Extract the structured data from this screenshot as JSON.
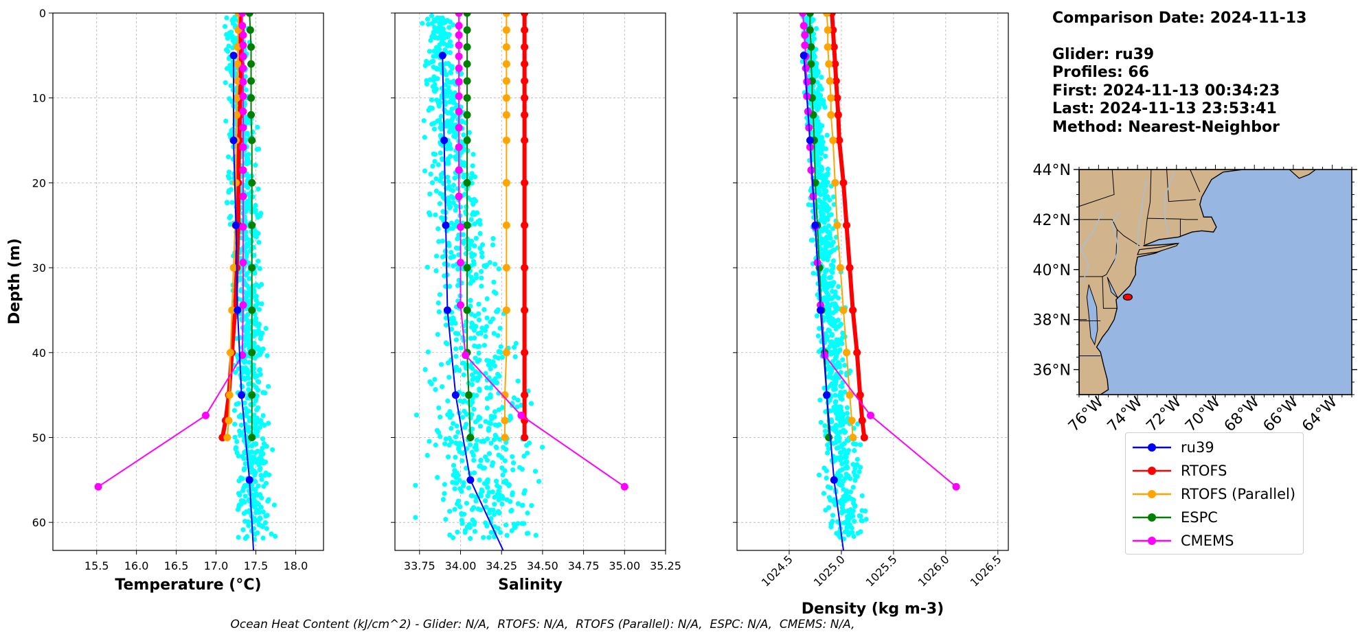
{
  "info": {
    "comparison_date": "Comparison Date: 2024-11-13",
    "glider": "Glider: ru39",
    "profiles": "Profiles: 66",
    "first": "First: 2024-11-13 00:34:23",
    "last": "Last: 2024-11-13 23:53:41",
    "method": "Method: Nearest-Neighbor"
  },
  "footer": "Ocean Heat Content (kJ/cm^2) - Glider: N/A,  RTOFS: N/A,  RTOFS (Parallel): N/A,  ESPC: N/A,  CMEMS: N/A,",
  "legend": [
    {
      "name": "ru39",
      "color": "#0000ff"
    },
    {
      "name": "RTOFS",
      "color": "#ff0000"
    },
    {
      "name": "RTOFS (Parallel)",
      "color": "#ffa500"
    },
    {
      "name": "ESPC",
      "color": "#008000"
    },
    {
      "name": "CMEMS",
      "color": "#ff00ff"
    }
  ],
  "colors": {
    "glider_raw": "#00ffff",
    "land": "#d2b48c",
    "ocean": "#97b6e1",
    "rivers": "#a9bfd6",
    "track": "#ff0000"
  },
  "chart_data": [
    {
      "type": "line",
      "xlabel": "Temperature (°C)",
      "ylabel": "Depth (m)",
      "xlim": [
        14.95,
        18.35
      ],
      "ylim": [
        63.3,
        0
      ],
      "xticks": [
        15.5,
        16.0,
        16.5,
        17.0,
        17.5,
        18.0
      ],
      "yticks": [
        0,
        10,
        20,
        30,
        40,
        50,
        60
      ],
      "grid": true,
      "raw_glider": {
        "name": "ru39",
        "depth_max": 62,
        "center_top": 17.25,
        "center_bottom": 17.5,
        "spread_top": 0.12,
        "spread_bottom": 0.18
      },
      "series": [
        {
          "name": "ru39",
          "color": "#0000ff",
          "points": [
            [
              17.22,
              5
            ],
            [
              17.22,
              15
            ],
            [
              17.25,
              25
            ],
            [
              17.27,
              35
            ],
            [
              17.32,
              45
            ],
            [
              17.42,
              55
            ],
            [
              17.47,
              63.3
            ]
          ]
        },
        {
          "name": "RTOFS",
          "color": "#ff0000",
          "points": [
            [
              17.31,
              0
            ],
            [
              17.31,
              2
            ],
            [
              17.31,
              4
            ],
            [
              17.31,
              6
            ],
            [
              17.31,
              8
            ],
            [
              17.3,
              10
            ],
            [
              17.3,
              12
            ],
            [
              17.29,
              15
            ],
            [
              17.28,
              20
            ],
            [
              17.28,
              25
            ],
            [
              17.26,
              30
            ],
            [
              17.24,
              35
            ],
            [
              17.2,
              40
            ],
            [
              17.16,
              45
            ],
            [
              17.12,
              48
            ],
            [
              17.08,
              50
            ]
          ]
        },
        {
          "name": "RTOFS (Parallel)",
          "color": "#ffa500",
          "points": [
            [
              17.28,
              0
            ],
            [
              17.28,
              2
            ],
            [
              17.27,
              4
            ],
            [
              17.27,
              6
            ],
            [
              17.27,
              8
            ],
            [
              17.26,
              10
            ],
            [
              17.26,
              12
            ],
            [
              17.25,
              15
            ],
            [
              17.25,
              20
            ],
            [
              17.24,
              25
            ],
            [
              17.22,
              30
            ],
            [
              17.2,
              35
            ],
            [
              17.18,
              40
            ],
            [
              17.17,
              45
            ],
            [
              17.16,
              48
            ],
            [
              17.14,
              50
            ]
          ]
        },
        {
          "name": "ESPC",
          "color": "#008000",
          "points": [
            [
              17.42,
              0
            ],
            [
              17.43,
              2
            ],
            [
              17.44,
              4
            ],
            [
              17.44,
              6
            ],
            [
              17.44,
              8
            ],
            [
              17.44,
              10
            ],
            [
              17.44,
              12
            ],
            [
              17.45,
              15
            ],
            [
              17.45,
              20
            ],
            [
              17.45,
              25
            ],
            [
              17.45,
              30
            ],
            [
              17.45,
              35
            ],
            [
              17.45,
              40
            ],
            [
              17.45,
              45
            ],
            [
              17.45,
              50
            ]
          ]
        },
        {
          "name": "CMEMS",
          "color": "#ff00ff",
          "points": [
            [
              17.33,
              0
            ],
            [
              17.33,
              1.5
            ],
            [
              17.34,
              2.6
            ],
            [
              17.34,
              3.8
            ],
            [
              17.34,
              5.1
            ],
            [
              17.34,
              6.5
            ],
            [
              17.34,
              8.1
            ],
            [
              17.34,
              9.8
            ],
            [
              17.34,
              11.6
            ],
            [
              17.34,
              13.5
            ],
            [
              17.34,
              15.8
            ],
            [
              17.34,
              18.5
            ],
            [
              17.34,
              21.6
            ],
            [
              17.34,
              25.2
            ],
            [
              17.34,
              29.4
            ],
            [
              17.34,
              34.4
            ],
            [
              17.33,
              40.3
            ],
            [
              16.87,
              47.4
            ],
            [
              15.52,
              55.8
            ]
          ]
        }
      ]
    },
    {
      "type": "line",
      "xlabel": "Salinity",
      "xlim": [
        33.6,
        35.25
      ],
      "ylim": [
        63.3,
        0
      ],
      "xticks": [
        33.75,
        34.0,
        34.25,
        34.5,
        34.75,
        35.0,
        35.25
      ],
      "yticks": [
        0,
        10,
        20,
        30,
        40,
        50,
        60
      ],
      "grid": true,
      "raw_glider": {
        "name": "ru39",
        "depth_max": 62,
        "center_top": 33.86,
        "center_bottom": 34.2,
        "spread_top": 0.06,
        "spread_bottom": 0.28
      },
      "series": [
        {
          "name": "ru39",
          "color": "#0000ff",
          "points": [
            [
              33.89,
              5
            ],
            [
              33.9,
              15
            ],
            [
              33.91,
              25
            ],
            [
              33.92,
              35
            ],
            [
              33.97,
              45
            ],
            [
              34.06,
              55
            ],
            [
              34.26,
              63.3
            ]
          ]
        },
        {
          "name": "RTOFS",
          "color": "#ff0000",
          "points": [
            [
              34.39,
              0
            ],
            [
              34.39,
              2
            ],
            [
              34.39,
              4
            ],
            [
              34.39,
              6
            ],
            [
              34.39,
              8
            ],
            [
              34.39,
              10
            ],
            [
              34.39,
              12
            ],
            [
              34.39,
              15
            ],
            [
              34.39,
              20
            ],
            [
              34.39,
              25
            ],
            [
              34.39,
              30
            ],
            [
              34.39,
              35
            ],
            [
              34.39,
              40
            ],
            [
              34.39,
              45
            ],
            [
              34.39,
              48
            ],
            [
              34.39,
              50
            ]
          ]
        },
        {
          "name": "RTOFS (Parallel)",
          "color": "#ffa500",
          "points": [
            [
              34.28,
              0
            ],
            [
              34.28,
              2
            ],
            [
              34.28,
              4
            ],
            [
              34.28,
              6
            ],
            [
              34.28,
              8
            ],
            [
              34.28,
              10
            ],
            [
              34.28,
              12
            ],
            [
              34.28,
              15
            ],
            [
              34.28,
              20
            ],
            [
              34.28,
              25
            ],
            [
              34.28,
              30
            ],
            [
              34.28,
              35
            ],
            [
              34.28,
              40
            ],
            [
              34.27,
              45
            ],
            [
              34.27,
              48
            ],
            [
              34.27,
              50
            ]
          ]
        },
        {
          "name": "ESPC",
          "color": "#008000",
          "points": [
            [
              34.04,
              0
            ],
            [
              34.04,
              2
            ],
            [
              34.04,
              4
            ],
            [
              34.04,
              6
            ],
            [
              34.04,
              8
            ],
            [
              34.04,
              10
            ],
            [
              34.04,
              12
            ],
            [
              34.04,
              15
            ],
            [
              34.04,
              20
            ],
            [
              34.04,
              25
            ],
            [
              34.04,
              30
            ],
            [
              34.04,
              35
            ],
            [
              34.04,
              40
            ],
            [
              34.05,
              45
            ],
            [
              34.06,
              50
            ]
          ]
        },
        {
          "name": "CMEMS",
          "color": "#ff00ff",
          "points": [
            [
              33.99,
              0
            ],
            [
              33.99,
              1.5
            ],
            [
              33.99,
              2.6
            ],
            [
              33.99,
              3.8
            ],
            [
              33.99,
              5.1
            ],
            [
              33.99,
              6.5
            ],
            [
              33.99,
              8.1
            ],
            [
              33.99,
              9.8
            ],
            [
              33.99,
              11.6
            ],
            [
              33.99,
              13.5
            ],
            [
              33.99,
              15.8
            ],
            [
              33.99,
              18.5
            ],
            [
              33.99,
              21.6
            ],
            [
              34.0,
              25.2
            ],
            [
              34.0,
              29.4
            ],
            [
              34.0,
              34.4
            ],
            [
              34.03,
              40.3
            ],
            [
              34.37,
              47.4
            ],
            [
              35.0,
              55.8
            ]
          ]
        }
      ]
    },
    {
      "type": "line",
      "xlabel": "Density (kg m-3)",
      "xlim": [
        1024.0,
        1026.6
      ],
      "ylim": [
        63.3,
        0
      ],
      "xticks": [
        1024.5,
        1025.0,
        1025.5,
        1026.0,
        1026.5
      ],
      "yticks": [
        0,
        10,
        20,
        30,
        40,
        50,
        60
      ],
      "grid": true,
      "raw_glider": {
        "name": "ru39",
        "depth_max": 62,
        "center_top": 1024.68,
        "center_bottom": 1025.05,
        "spread_top": 0.05,
        "spread_bottom": 0.15
      },
      "series": [
        {
          "name": "ru39",
          "color": "#0000ff",
          "points": [
            [
              1024.64,
              5
            ],
            [
              1024.7,
              15
            ],
            [
              1024.75,
              25
            ],
            [
              1024.8,
              35
            ],
            [
              1024.86,
              45
            ],
            [
              1024.93,
              55
            ],
            [
              1025.02,
              63.3
            ]
          ]
        },
        {
          "name": "RTOFS",
          "color": "#ff0000",
          "points": [
            [
              1024.91,
              0
            ],
            [
              1024.92,
              2
            ],
            [
              1024.93,
              4
            ],
            [
              1024.94,
              6
            ],
            [
              1024.95,
              8
            ],
            [
              1024.96,
              10
            ],
            [
              1024.97,
              12
            ],
            [
              1024.98,
              15
            ],
            [
              1025.02,
              20
            ],
            [
              1025.05,
              25
            ],
            [
              1025.08,
              30
            ],
            [
              1025.11,
              35
            ],
            [
              1025.15,
              40
            ],
            [
              1025.18,
              45
            ],
            [
              1025.2,
              48
            ],
            [
              1025.22,
              50
            ]
          ]
        },
        {
          "name": "RTOFS (Parallel)",
          "color": "#ffa500",
          "points": [
            [
              1024.86,
              0
            ],
            [
              1024.87,
              2
            ],
            [
              1024.87,
              4
            ],
            [
              1024.88,
              6
            ],
            [
              1024.89,
              8
            ],
            [
              1024.9,
              10
            ],
            [
              1024.9,
              12
            ],
            [
              1024.92,
              15
            ],
            [
              1024.94,
              20
            ],
            [
              1024.96,
              25
            ],
            [
              1024.99,
              30
            ],
            [
              1025.02,
              35
            ],
            [
              1025.05,
              40
            ],
            [
              1025.08,
              45
            ],
            [
              1025.1,
              48
            ],
            [
              1025.11,
              50
            ]
          ]
        },
        {
          "name": "ESPC",
          "color": "#008000",
          "points": [
            [
              1024.7,
              0
            ],
            [
              1024.7,
              2
            ],
            [
              1024.71,
              4
            ],
            [
              1024.71,
              6
            ],
            [
              1024.72,
              8
            ],
            [
              1024.72,
              10
            ],
            [
              1024.73,
              12
            ],
            [
              1024.74,
              15
            ],
            [
              1024.75,
              20
            ],
            [
              1024.77,
              25
            ],
            [
              1024.79,
              30
            ],
            [
              1024.81,
              35
            ],
            [
              1024.84,
              40
            ],
            [
              1024.86,
              45
            ],
            [
              1024.88,
              50
            ]
          ]
        },
        {
          "name": "CMEMS",
          "color": "#ff00ff",
          "points": [
            [
              1024.63,
              0
            ],
            [
              1024.64,
              1.5
            ],
            [
              1024.65,
              2.6
            ],
            [
              1024.65,
              3.8
            ],
            [
              1024.66,
              5.1
            ],
            [
              1024.66,
              6.5
            ],
            [
              1024.67,
              8.1
            ],
            [
              1024.67,
              9.8
            ],
            [
              1024.68,
              11.6
            ],
            [
              1024.69,
              13.5
            ],
            [
              1024.7,
              15.8
            ],
            [
              1024.71,
              18.5
            ],
            [
              1024.73,
              21.6
            ],
            [
              1024.75,
              25.2
            ],
            [
              1024.77,
              29.4
            ],
            [
              1024.8,
              34.4
            ],
            [
              1024.84,
              40.3
            ],
            [
              1025.28,
              47.4
            ],
            [
              1026.1,
              55.8
            ]
          ]
        }
      ]
    }
  ],
  "map": {
    "lon_ticks": [
      "76°W",
      "74°W",
      "72°W",
      "70°W",
      "68°W",
      "66°W",
      "64°W"
    ],
    "lat_ticks": [
      "44°N",
      "42°N",
      "40°N",
      "38°N",
      "36°N"
    ],
    "lon_range": [
      -77,
      -63
    ],
    "lat_range": [
      35,
      44
    ],
    "glider_track": {
      "lon": -74.5,
      "lat": 38.9
    }
  }
}
